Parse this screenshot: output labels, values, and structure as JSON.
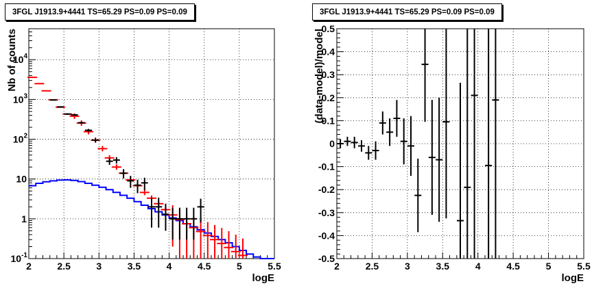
{
  "chart_data": [
    {
      "type": "line",
      "title": "3FGL J1913.9+4441 TS=65.29 PS=0.09 PS=0.09",
      "xlabel": "logE",
      "ylabel": "Nb of counts",
      "xlim": [
        2,
        5.5
      ],
      "ylim": [
        0.1,
        60000
      ],
      "yscale": "log",
      "grid": true,
      "x_ticks": [
        "2",
        "2.5",
        "3",
        "3.5",
        "4",
        "4.5",
        "5",
        "5.5"
      ],
      "y_ticks": [
        "10^-1",
        "1",
        "10",
        "10^2",
        "10^3",
        "10^4"
      ],
      "model_color": "#ff0000",
      "data_color": "#000000",
      "sum_color": "#0000ff",
      "bin_edges": [
        2.0,
        2.1,
        2.2,
        2.3,
        2.4,
        2.5,
        2.6,
        2.7,
        2.8,
        2.9,
        3.0,
        3.1,
        3.2,
        3.3,
        3.4,
        3.5,
        3.6,
        3.7,
        3.8,
        3.9,
        4.0,
        4.1,
        4.2,
        4.3,
        4.4,
        4.5,
        4.6,
        4.7,
        4.8,
        4.9,
        5.0,
        5.1,
        5.2
      ],
      "model_series": {
        "x": [
          2.05,
          2.15,
          2.25,
          2.35,
          2.45,
          2.55,
          2.65,
          2.75,
          2.85,
          2.95,
          3.05,
          3.15,
          3.25,
          3.35,
          3.45,
          3.55,
          3.65,
          3.75,
          3.85,
          3.95,
          4.05,
          4.15,
          4.25,
          4.35,
          4.45,
          4.55,
          4.65,
          4.75,
          4.85,
          4.95,
          5.05
        ],
        "y": [
          3600,
          2500,
          1650,
          980,
          640,
          430,
          380,
          255,
          155,
          95,
          58,
          34,
          20,
          14,
          9.5,
          6.8,
          4.6,
          3.3,
          2.4,
          1.7,
          1.25,
          0.95,
          0.75,
          0.6,
          0.48,
          0.38,
          0.3,
          0.24,
          0.19,
          0.15,
          0.12
        ],
        "err_low": [
          0,
          0,
          0,
          0,
          0,
          0,
          0,
          0,
          0,
          0,
          0,
          0,
          0,
          0,
          0,
          0,
          0,
          0,
          0,
          0,
          1.05,
          0.85,
          0.68,
          0.55,
          0.45,
          0.36,
          0.29,
          0.23,
          0.18,
          0.14,
          0.11
        ],
        "err_high": [
          0,
          0,
          0,
          0,
          0,
          0,
          0,
          0,
          0,
          0,
          0,
          0,
          0,
          0,
          0,
          0,
          0,
          0,
          0,
          0,
          0.95,
          0.75,
          0.65,
          0.55,
          0.5,
          0.45,
          0.4,
          0.35,
          0.3,
          0.25,
          0.2
        ]
      },
      "data_series": {
        "x": [
          2.35,
          2.45,
          2.55,
          2.65,
          2.75,
          2.85,
          2.95,
          3.15,
          3.25,
          3.35,
          3.45,
          3.55,
          3.65,
          3.75,
          3.85,
          3.95,
          4.05,
          4.15,
          4.25,
          4.35,
          4.45
        ],
        "y": [
          970,
          650,
          430,
          410,
          260,
          168,
          95,
          28,
          30,
          14,
          9,
          7,
          8,
          2,
          2,
          1.3,
          1,
          1,
          1,
          1,
          2
        ],
        "err_low": [
          30,
          25,
          20,
          20,
          16,
          13,
          10,
          5.3,
          5.5,
          3.7,
          3,
          2.6,
          2.8,
          1.4,
          1.4,
          0.8,
          0.7,
          0.7,
          0.7,
          0.7,
          1.2
        ],
        "err_high": [
          30,
          25,
          20,
          20,
          16,
          13,
          10,
          5.3,
          5.5,
          3.7,
          3,
          2.6,
          2.8,
          1.4,
          1.4,
          1.1,
          0.9,
          0.9,
          0.9,
          0.9,
          1.2
        ]
      },
      "sum_series": {
        "y": [
          6.8,
          7.8,
          8.5,
          9.0,
          9.4,
          9.5,
          9.2,
          8.6,
          7.8,
          7.0,
          6.2,
          5.4,
          4.6,
          3.9,
          3.3,
          2.7,
          2.2,
          1.8,
          1.5,
          1.25,
          1.05,
          0.9,
          0.75,
          0.63,
          0.53,
          0.44,
          0.36,
          0.3,
          0.25,
          0.2,
          0.16,
          0.13,
          0.11,
          0.1,
          0.1
        ]
      }
    },
    {
      "type": "scatter",
      "title": "3FGL J1913.9+4441 TS=65.29 PS=0.09 PS=0.09",
      "xlabel": "logE",
      "ylabel": "(data-model)/model",
      "xlim": [
        2,
        5.5
      ],
      "ylim": [
        -0.5,
        0.5
      ],
      "grid": true,
      "x_ticks": [
        "2",
        "2.5",
        "3",
        "3.5",
        "4",
        "4.5",
        "5",
        "5.5"
      ],
      "y_ticks": [
        "-0.5",
        "-0.4",
        "-0.3",
        "-0.2",
        "-0.1",
        "0",
        "0.1",
        "0.2",
        "0.3",
        "0.4",
        "0.5"
      ],
      "data_color": "#000000",
      "residual_series": {
        "x": [
          2.05,
          2.15,
          2.25,
          2.35,
          2.45,
          2.55,
          2.65,
          2.75,
          2.85,
          2.95,
          3.05,
          3.15,
          3.25,
          3.35,
          3.45,
          3.55,
          3.75,
          3.85,
          3.95,
          4.15,
          4.25
        ],
        "y": [
          0.0,
          0.01,
          0.005,
          -0.01,
          -0.04,
          -0.03,
          0.09,
          0.05,
          0.11,
          0.01,
          -0.01,
          -0.225,
          0.345,
          -0.06,
          -0.07,
          0.095,
          -0.335,
          -0.19,
          0.21,
          -0.095,
          0.19
        ],
        "err": [
          0.02,
          0.02,
          0.025,
          0.025,
          0.03,
          0.04,
          0.05,
          0.06,
          0.08,
          0.1,
          0.13,
          0.16,
          0.25,
          0.25,
          0.27,
          0.42,
          0.6,
          0.7,
          0.75,
          0.9,
          0.95
        ]
      }
    }
  ]
}
